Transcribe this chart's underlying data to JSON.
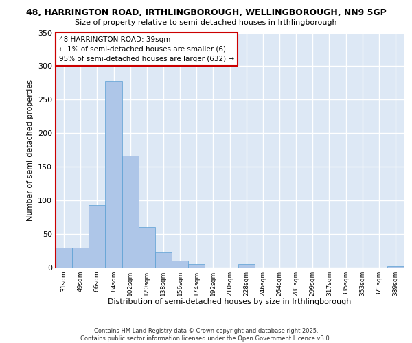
{
  "title_line1": "48, HARRINGTON ROAD, IRTHLINGBOROUGH, WELLINGBOROUGH, NN9 5GP",
  "title_line2": "Size of property relative to semi-detached houses in Irthlingborough",
  "xlabel": "Distribution of semi-detached houses by size in Irthlingborough",
  "ylabel": "Number of semi-detached properties",
  "categories": [
    "31sqm",
    "49sqm",
    "66sqm",
    "84sqm",
    "102sqm",
    "120sqm",
    "138sqm",
    "156sqm",
    "174sqm",
    "192sqm",
    "210sqm",
    "228sqm",
    "246sqm",
    "264sqm",
    "281sqm",
    "299sqm",
    "317sqm",
    "335sqm",
    "353sqm",
    "371sqm",
    "389sqm"
  ],
  "values": [
    30,
    30,
    93,
    278,
    167,
    60,
    22,
    10,
    5,
    0,
    0,
    5,
    0,
    0,
    0,
    0,
    0,
    0,
    0,
    0,
    2
  ],
  "bar_color": "#aec6e8",
  "bar_edge_color": "#5a9fd4",
  "highlight_color": "#cc0000",
  "annotation_title": "48 HARRINGTON ROAD: 39sqm",
  "annotation_line1": "← 1% of semi-detached houses are smaller (6)",
  "annotation_line2": "95% of semi-detached houses are larger (632) →",
  "ylim": [
    0,
    350
  ],
  "yticks": [
    0,
    50,
    100,
    150,
    200,
    250,
    300,
    350
  ],
  "background_color": "#dde8f5",
  "grid_color": "#ffffff",
  "footer_line1": "Contains HM Land Registry data © Crown copyright and database right 2025.",
  "footer_line2": "Contains public sector information licensed under the Open Government Licence v3.0."
}
